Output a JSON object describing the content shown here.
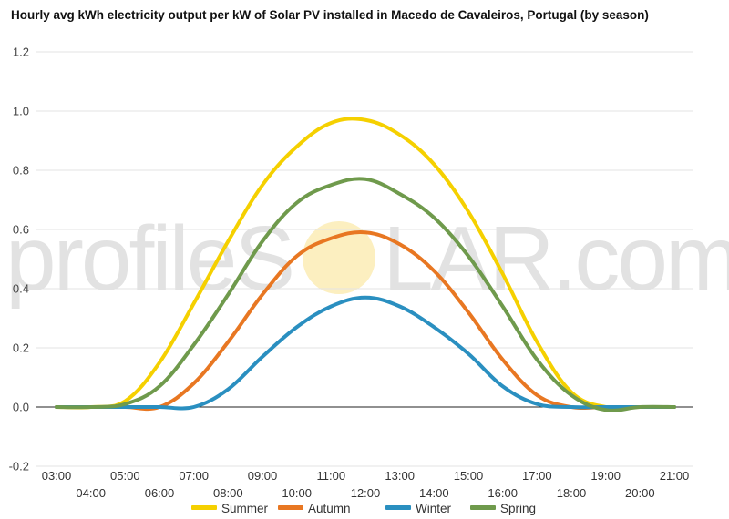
{
  "title": "Hourly avg kWh electricity output per kW of Solar PV installed in Macedo de Cavaleiros, Portugal (by season)",
  "watermark": {
    "left": "profileS",
    "right": "LAR.com",
    "sun_color": "#f6d24a"
  },
  "chart_data": {
    "type": "line",
    "title": "Hourly avg kWh electricity output per kW of Solar PV installed in Macedo de Cavaleiros, Portugal (by season)",
    "x": [
      "03:00",
      "04:00",
      "05:00",
      "06:00",
      "07:00",
      "08:00",
      "09:00",
      "10:00",
      "11:00",
      "12:00",
      "13:00",
      "14:00",
      "15:00",
      "16:00",
      "17:00",
      "18:00",
      "19:00",
      "20:00",
      "21:00"
    ],
    "x_tick_labels": [
      "03:00",
      "04:00",
      "05:00",
      "06:00",
      "07:00",
      "08:00",
      "09:00",
      "10:00",
      "11:00",
      "12:00",
      "13:00",
      "14:00",
      "15:00",
      "16:00",
      "17:00",
      "18:00",
      "19:00",
      "20:00",
      "21:00"
    ],
    "y_ticks": [
      -0.2,
      0.0,
      0.2,
      0.4,
      0.6,
      0.8,
      1.0,
      1.2
    ],
    "y_tick_labels": [
      "-0.2",
      "0.0",
      "0.2",
      "0.4",
      "0.6",
      "0.8",
      "1.0",
      "1.2"
    ],
    "ylim": [
      -0.2,
      1.2
    ],
    "grid": true,
    "legend_position": "bottom",
    "series": [
      {
        "name": "Summer",
        "color": "#f5d000",
        "values": [
          0.0,
          0.0,
          0.02,
          0.15,
          0.35,
          0.56,
          0.75,
          0.88,
          0.96,
          0.97,
          0.92,
          0.82,
          0.66,
          0.45,
          0.22,
          0.05,
          0.0,
          0.0,
          0.0
        ]
      },
      {
        "name": "Autumn",
        "color": "#e87722",
        "values": [
          0.0,
          0.0,
          0.0,
          0.0,
          0.08,
          0.22,
          0.38,
          0.51,
          0.57,
          0.59,
          0.55,
          0.46,
          0.32,
          0.16,
          0.04,
          0.0,
          0.0,
          0.0,
          0.0
        ]
      },
      {
        "name": "Winter",
        "color": "#2a8fc0",
        "values": [
          0.0,
          0.0,
          0.0,
          0.0,
          0.0,
          0.06,
          0.17,
          0.27,
          0.34,
          0.37,
          0.34,
          0.27,
          0.18,
          0.07,
          0.01,
          0.0,
          0.0,
          0.0,
          0.0
        ]
      },
      {
        "name": "Spring",
        "color": "#6f9a4c",
        "values": [
          0.0,
          0.0,
          0.01,
          0.07,
          0.21,
          0.38,
          0.56,
          0.69,
          0.75,
          0.77,
          0.72,
          0.64,
          0.51,
          0.34,
          0.16,
          0.04,
          -0.01,
          0.0,
          0.0
        ]
      }
    ]
  }
}
